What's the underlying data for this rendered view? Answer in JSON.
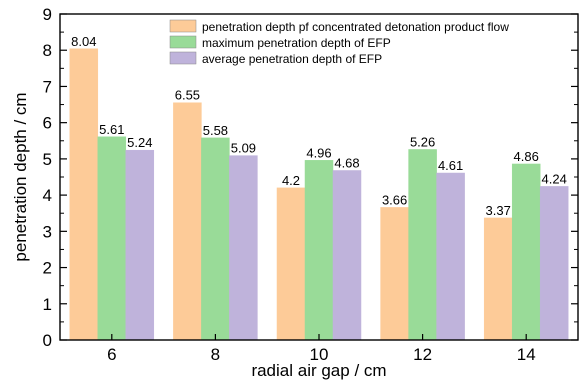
{
  "chart_data": {
    "type": "bar",
    "title": "",
    "xlabel": "radial air gap / cm",
    "ylabel": "penetration depth / cm",
    "ylim": [
      0,
      9
    ],
    "yticks": [
      0,
      1,
      2,
      3,
      4,
      5,
      6,
      7,
      8,
      9
    ],
    "categories": [
      "6",
      "8",
      "10",
      "12",
      "14"
    ],
    "grid": false,
    "legend_position": "top-right",
    "series": [
      {
        "name": "penetration depth pf concentrated detonation product flow",
        "color": "#FDCB98",
        "values": [
          8.04,
          6.55,
          4.2,
          3.66,
          3.37
        ],
        "labels": [
          "8.04",
          "6.55",
          "4.2",
          "3.66",
          "3.37"
        ]
      },
      {
        "name": "maximum penetration depth of EFP",
        "color": "#99DB98",
        "values": [
          5.61,
          5.58,
          4.96,
          5.26,
          4.86
        ],
        "labels": [
          "5.61",
          "5.58",
          "4.96",
          "5.26",
          "4.86"
        ]
      },
      {
        "name": "average penetration depth of EFP",
        "color": "#BFB3DB",
        "values": [
          5.24,
          5.09,
          4.68,
          4.61,
          4.24
        ],
        "labels": [
          "5.24",
          "5.09",
          "4.68",
          "4.61",
          "4.24"
        ]
      }
    ]
  }
}
